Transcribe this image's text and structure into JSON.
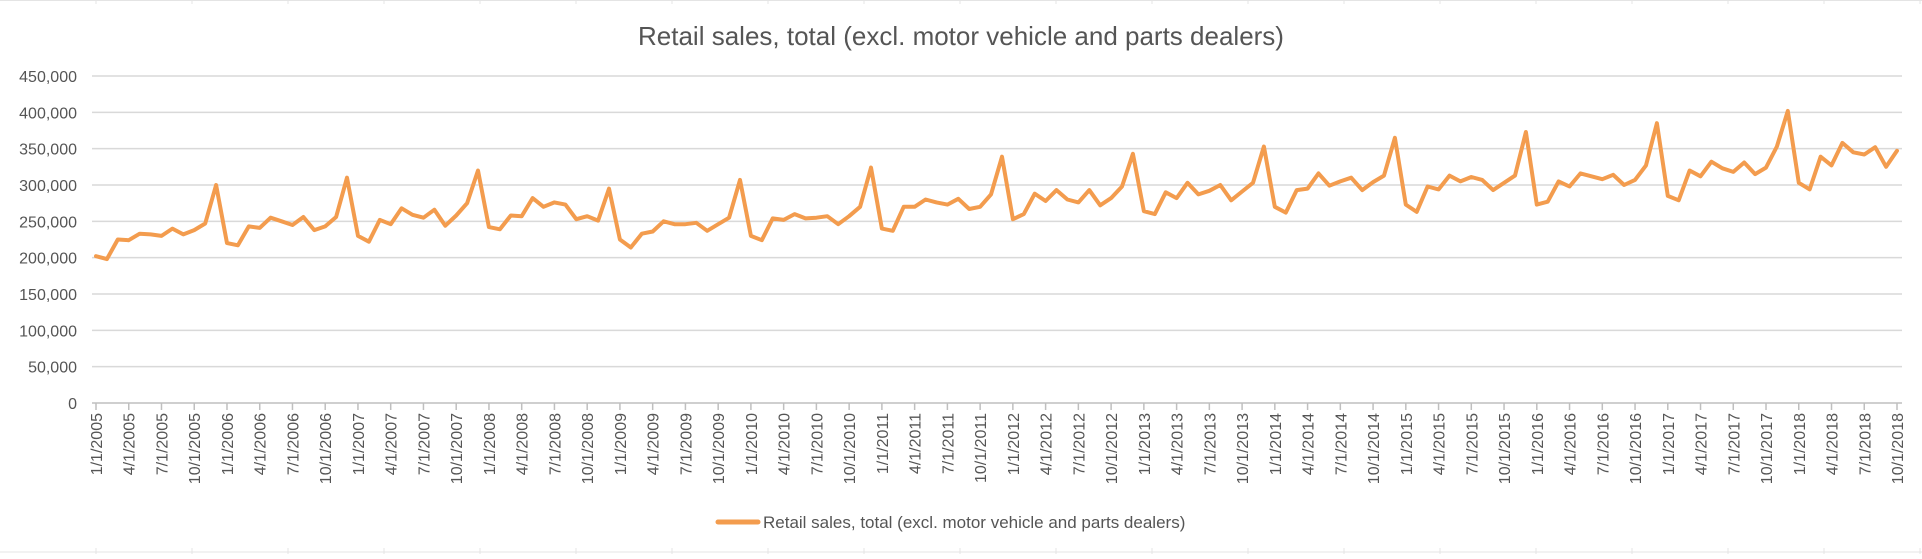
{
  "chart_data": {
    "type": "line",
    "title": "Retail sales, total (excl. motor vehicle and parts dealers)",
    "xlabel": "",
    "ylabel": "",
    "ylim": [
      0,
      450000
    ],
    "y_ticks": [
      0,
      50000,
      100000,
      150000,
      200000,
      250000,
      300000,
      350000,
      400000,
      450000
    ],
    "y_tick_labels": [
      "0",
      "50,000",
      "100,000",
      "150,000",
      "200,000",
      "250,000",
      "300,000",
      "350,000",
      "400,000",
      "450,000"
    ],
    "x_tick_labels": [
      "1/1/2005",
      "4/1/2005",
      "7/1/2005",
      "10/1/2005",
      "1/1/2006",
      "4/1/2006",
      "7/1/2006",
      "10/1/2006",
      "1/1/2007",
      "4/1/2007",
      "7/1/2007",
      "10/1/2007",
      "1/1/2008",
      "4/1/2008",
      "7/1/2008",
      "10/1/2008",
      "1/1/2009",
      "4/1/2009",
      "7/1/2009",
      "10/1/2009",
      "1/1/2010",
      "4/1/2010",
      "7/1/2010",
      "10/1/2010",
      "1/1/2011",
      "4/1/2011",
      "7/1/2011",
      "10/1/2011",
      "1/1/2012",
      "4/1/2012",
      "7/1/2012",
      "10/1/2012",
      "1/1/2013",
      "4/1/2013",
      "7/1/2013",
      "10/1/2013",
      "1/1/2014",
      "4/1/2014",
      "7/1/2014",
      "10/1/2014",
      "1/1/2015",
      "4/1/2015",
      "7/1/2015",
      "10/1/2015",
      "1/1/2016",
      "4/1/2016",
      "7/1/2016",
      "10/1/2016",
      "1/1/2017",
      "4/1/2017",
      "7/1/2017",
      "10/1/2017",
      "1/1/2018",
      "4/1/2018",
      "7/1/2018",
      "10/1/2018"
    ],
    "x_start": "2005-01",
    "x_frequency": "monthly",
    "grid": true,
    "legend_position": "bottom",
    "series": [
      {
        "name": "Retail sales, total (excl. motor vehicle and parts dealers)",
        "color": "#F39C4E",
        "values": [
          202000,
          198000,
          225000,
          224000,
          233000,
          232000,
          230000,
          240000,
          232000,
          238000,
          247000,
          300000,
          220000,
          217000,
          243000,
          241000,
          255000,
          250000,
          245000,
          256000,
          238000,
          243000,
          256000,
          310000,
          230000,
          222000,
          252000,
          246000,
          268000,
          259000,
          255000,
          266000,
          244000,
          258000,
          275000,
          320000,
          242000,
          239000,
          258000,
          257000,
          282000,
          270000,
          276000,
          273000,
          253000,
          257000,
          251000,
          295000,
          225000,
          214000,
          233000,
          236000,
          250000,
          246000,
          246000,
          248000,
          237000,
          246000,
          255000,
          307000,
          230000,
          224000,
          254000,
          252000,
          260000,
          254000,
          255000,
          257000,
          246000,
          257000,
          270000,
          324000,
          240000,
          237000,
          270000,
          270000,
          280000,
          276000,
          273000,
          281000,
          267000,
          270000,
          287000,
          339000,
          253000,
          260000,
          288000,
          278000,
          293000,
          280000,
          276000,
          293000,
          272000,
          282000,
          298000,
          343000,
          264000,
          260000,
          290000,
          282000,
          303000,
          287000,
          292000,
          300000,
          279000,
          291000,
          303000,
          353000,
          270000,
          262000,
          293000,
          295000,
          316000,
          299000,
          305000,
          310000,
          293000,
          304000,
          313000,
          365000,
          273000,
          263000,
          298000,
          294000,
          313000,
          305000,
          311000,
          307000,
          293000,
          303000,
          313000,
          373000,
          273000,
          277000,
          305000,
          298000,
          316000,
          312000,
          308000,
          314000,
          300000,
          307000,
          327000,
          385000,
          285000,
          279000,
          320000,
          312000,
          332000,
          323000,
          318000,
          331000,
          315000,
          324000,
          353000,
          402000,
          303000,
          294000,
          339000,
          327000,
          358000,
          345000,
          342000,
          352000,
          325000,
          347000
        ]
      }
    ]
  }
}
